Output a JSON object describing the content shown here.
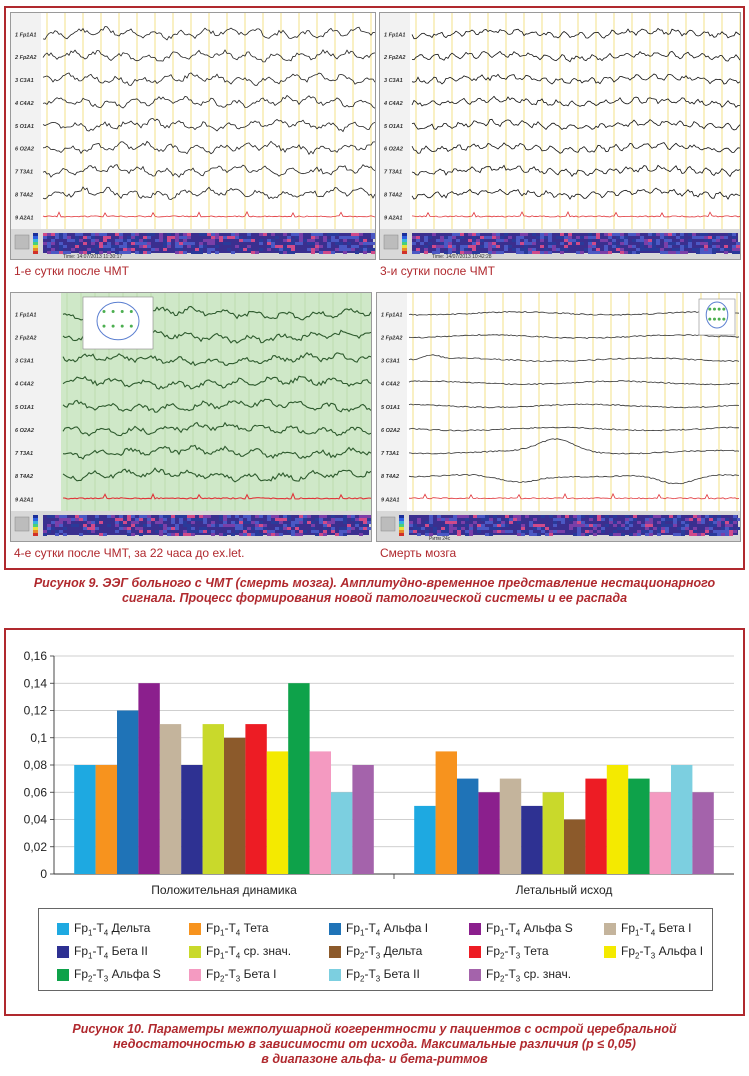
{
  "eeg_panels": [
    {
      "caption": "1-е сутки после ЧМТ",
      "channels": [
        "Fp1A1",
        "Fp2A2",
        "C3A1",
        "C4A2",
        "O1A1",
        "O2A2",
        "T3A1",
        "T4A2",
        "A2A1"
      ],
      "bottom_text": "Time: 14:07/2013 11:30:17"
    },
    {
      "caption": "3-и сутки после ЧМТ",
      "channels": [
        "Fp1A1",
        "Fp2A2",
        "C3A1",
        "C4A2",
        "O1A1",
        "O2A2",
        "T3A1",
        "T4A2",
        "A2A1"
      ],
      "bottom_text": "Time: 14/07/2013 10:42:28"
    },
    {
      "caption": "4-е сутки после ЧМТ, за 22 часа до ex.let.",
      "channels": [
        "Fp1A1",
        "Fp2A2",
        "C3A1",
        "C4A2",
        "O1A1",
        "O2A2",
        "T3A1",
        "T4A2",
        "A2A1"
      ],
      "bottom_text": ""
    },
    {
      "caption": "Смерть мозга",
      "channels": [
        "Fp1A1",
        "Fp2A2",
        "C3A1",
        "C4A2",
        "O1A1",
        "O2A2",
        "T3A1",
        "T4A2",
        "A2A1"
      ],
      "bottom_text": "Ритм 24с"
    }
  ],
  "fig9_caption": {
    "line1": "Рисунок 9. ЭЭГ больного с ЧМТ (смерть мозга). Амплитудно-временное представление нестационарного",
    "line2": "сигнала. Процесс формирования новой патологической системы и ее распада"
  },
  "chart_data": {
    "type": "bar",
    "categories": [
      "Положительная динамика",
      "Летальный исход"
    ],
    "ylim": [
      0,
      0.16
    ],
    "yticks": [
      "0",
      "0,02",
      "0,04",
      "0,06",
      "0,08",
      "0,1",
      "0,12",
      "0,14",
      "0,16"
    ],
    "series": [
      {
        "name": "Fp1-T4 Дельта",
        "color": "#1ea9e1",
        "values": [
          0.08,
          0.05
        ]
      },
      {
        "name": "Fp1-T4 Тета",
        "color": "#f7931e",
        "values": [
          0.08,
          0.09
        ]
      },
      {
        "name": "Fp1-T4 Альфа I",
        "color": "#1f73b7",
        "values": [
          0.12,
          0.07
        ]
      },
      {
        "name": "Fp1-T4 Альфа S",
        "color": "#8b1f8d",
        "values": [
          0.14,
          0.06
        ]
      },
      {
        "name": "Fp1-T4 Бета I",
        "color": "#c4b49c",
        "values": [
          0.11,
          0.07
        ]
      },
      {
        "name": "Fp1-T4 Бета II",
        "color": "#2e3192",
        "values": [
          0.08,
          0.05
        ]
      },
      {
        "name": "Fp1-T4 ср. знач.",
        "color": "#c9d92b",
        "values": [
          0.11,
          0.06
        ]
      },
      {
        "name": "Fp2-T3 Дельта",
        "color": "#8c5a2b",
        "values": [
          0.1,
          0.04
        ]
      },
      {
        "name": "Fp2-T3 Тета",
        "color": "#ed1c24",
        "values": [
          0.11,
          0.07
        ]
      },
      {
        "name": "Fp2-T3 Альфа I",
        "color": "#f4ea00",
        "values": [
          0.09,
          0.08
        ]
      },
      {
        "name": "Fp2-T3 Альфа S",
        "color": "#0ea24a",
        "values": [
          0.14,
          0.07
        ]
      },
      {
        "name": "Fp2-T3 Бета I",
        "color": "#f49ac1",
        "values": [
          0.09,
          0.06
        ]
      },
      {
        "name": "Fp2-T3 Бета II",
        "color": "#7ccfe0",
        "values": [
          0.06,
          0.08
        ]
      },
      {
        "name": "Fp2-T3 ср. знач.",
        "color": "#a463ab",
        "values": [
          0.08,
          0.06
        ]
      }
    ]
  },
  "legend": [
    {
      "pre": "Fp",
      "s1": "1",
      "mid": "-T",
      "s2": "4",
      "post": " Дельта",
      "color": "#1ea9e1"
    },
    {
      "pre": "Fp",
      "s1": "1",
      "mid": "-T",
      "s2": "4",
      "post": " Тета",
      "color": "#f7931e"
    },
    {
      "pre": "Fp",
      "s1": "1",
      "mid": "-T",
      "s2": "4",
      "post": " Альфа I",
      "color": "#1f73b7"
    },
    {
      "pre": "Fp",
      "s1": "1",
      "mid": "-T",
      "s2": "4",
      "post": " Альфа S",
      "color": "#8b1f8d"
    },
    {
      "pre": "Fp",
      "s1": "1",
      "mid": "-T",
      "s2": "4",
      "post": " Бета I",
      "color": "#c4b49c"
    },
    {
      "pre": "Fp",
      "s1": "1",
      "mid": "-T",
      "s2": "4",
      "post": " Бета II",
      "color": "#2e3192"
    },
    {
      "pre": "Fp",
      "s1": "1",
      "mid": "-T",
      "s2": "4",
      "post": " ср. знач.",
      "color": "#c9d92b"
    },
    {
      "pre": "Fp",
      "s1": "2",
      "mid": "-T",
      "s2": "3",
      "post": " Дельта",
      "color": "#8c5a2b"
    },
    {
      "pre": "Fp",
      "s1": "2",
      "mid": "-T",
      "s2": "3",
      "post": " Тета",
      "color": "#ed1c24"
    },
    {
      "pre": "Fp",
      "s1": "2",
      "mid": "-T",
      "s2": "3",
      "post": " Альфа I",
      "color": "#f4ea00"
    },
    {
      "pre": "Fp",
      "s1": "2",
      "mid": "-T",
      "s2": "3",
      "post": " Альфа S",
      "color": "#0ea24a"
    },
    {
      "pre": "Fp",
      "s1": "2",
      "mid": "-T",
      "s2": "3",
      "post": " Бета I",
      "color": "#f49ac1"
    },
    {
      "pre": "Fp",
      "s1": "2",
      "mid": "-T",
      "s2": "3",
      "post": " Бета II",
      "color": "#7ccfe0"
    },
    {
      "pre": "Fp",
      "s1": "2",
      "mid": "-T",
      "s2": "3",
      "post": " ср. знач.",
      "color": "#a463ab"
    }
  ],
  "fig10_caption": {
    "line1": "Рисунок 10. Параметры межполушарной когерентности у пациентов с острой церебральной",
    "line2": "недостаточностью в зависимости от исхода. Максимальные различия (p ≤ 0,05)",
    "line3": "в диапазоне альфа- и бета-ритмов"
  }
}
